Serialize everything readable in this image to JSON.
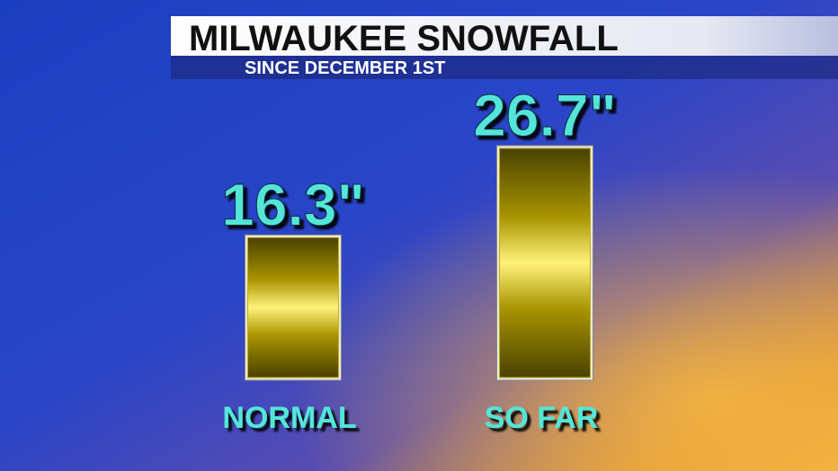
{
  "chart_data": {
    "type": "bar",
    "title": "MILWAUKEE SNOWFALL",
    "subtitle": "SINCE DECEMBER 1ST",
    "categories": [
      "NORMAL",
      "SO FAR"
    ],
    "values": [
      16.3,
      26.7
    ],
    "value_labels": [
      "16.3\"",
      "26.7\""
    ],
    "color": "#c8b000"
  }
}
